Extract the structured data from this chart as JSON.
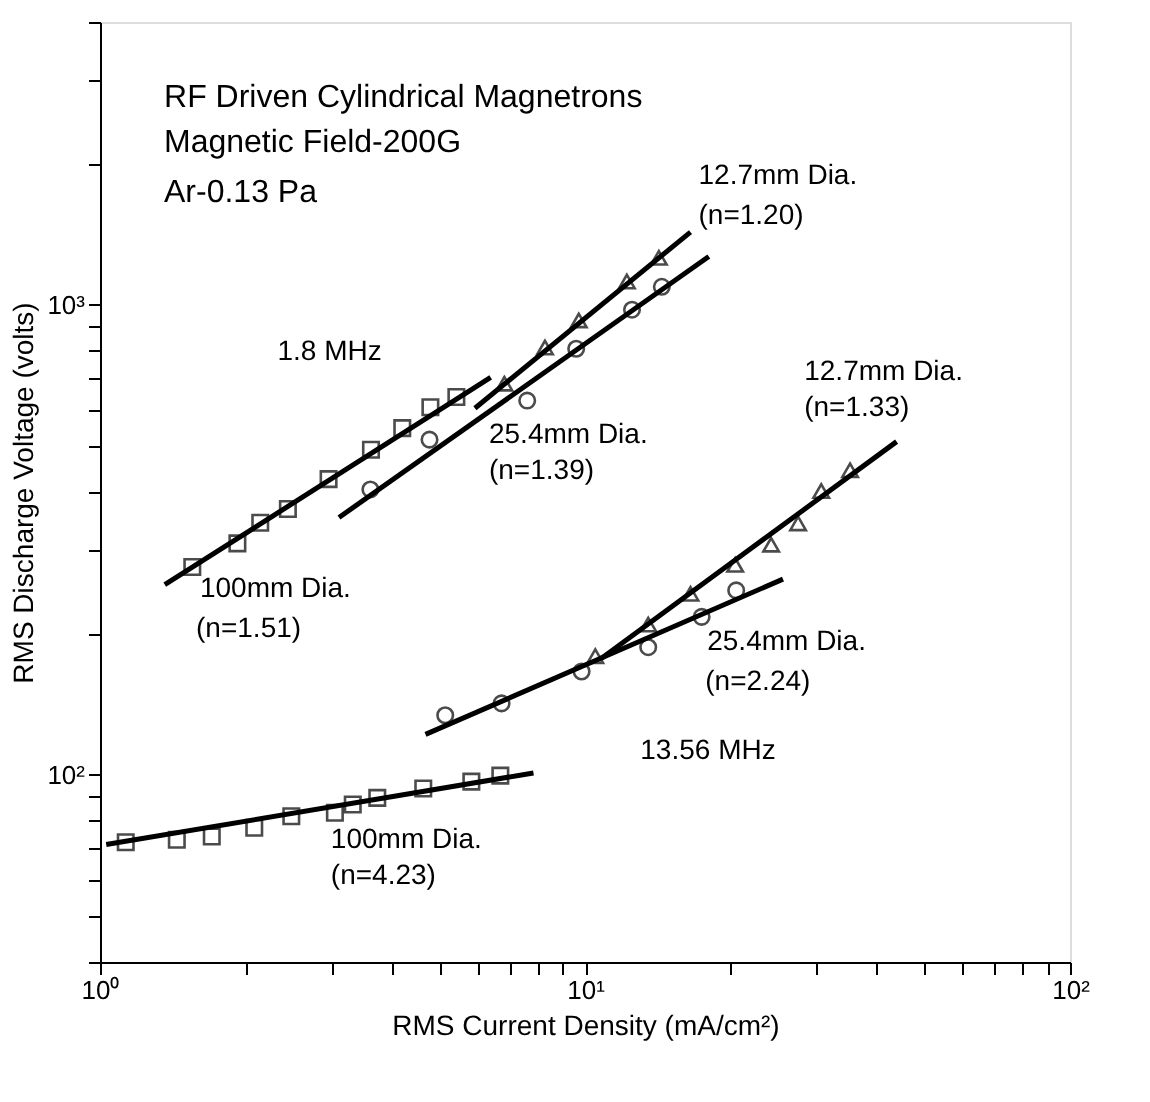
{
  "chart_data": {
    "type": "scatter",
    "xlabel": "RMS Current Density  (mA/cm²)",
    "ylabel": "RMS Discharge Voltage  (volts)",
    "log": "xy",
    "grid": false,
    "xlim": [
      1,
      100
    ],
    "ylim": [
      40,
      4000
    ],
    "xticks": [
      {
        "value": 1,
        "label": "10⁰"
      },
      {
        "value": 2,
        "label": null
      },
      {
        "value": 3,
        "label": null
      },
      {
        "value": 4,
        "label": null
      },
      {
        "value": 5,
        "label": null
      },
      {
        "value": 6,
        "label": null
      },
      {
        "value": 7,
        "label": null
      },
      {
        "value": 8,
        "label": null
      },
      {
        "value": 9,
        "label": null
      },
      {
        "value": 10,
        "label": "10¹"
      },
      {
        "value": 20,
        "label": null
      },
      {
        "value": 30,
        "label": null
      },
      {
        "value": 40,
        "label": null
      },
      {
        "value": 50,
        "label": null
      },
      {
        "value": 60,
        "label": null
      },
      {
        "value": 70,
        "label": null
      },
      {
        "value": 80,
        "label": null
      },
      {
        "value": 90,
        "label": null
      },
      {
        "value": 100,
        "label": "10²"
      }
    ],
    "yticks": [
      {
        "value": 40,
        "label": null
      },
      {
        "value": 50,
        "label": null
      },
      {
        "value": 60,
        "label": null
      },
      {
        "value": 70,
        "label": null
      },
      {
        "value": 80,
        "label": null
      },
      {
        "value": 90,
        "label": null
      },
      {
        "value": 100,
        "label": "10²"
      },
      {
        "value": 200,
        "label": null
      },
      {
        "value": 300,
        "label": null
      },
      {
        "value": 400,
        "label": null
      },
      {
        "value": 500,
        "label": null
      },
      {
        "value": 600,
        "label": null
      },
      {
        "value": 700,
        "label": null
      },
      {
        "value": 800,
        "label": null
      },
      {
        "value": 900,
        "label": null
      },
      {
        "value": 1000,
        "label": "10³"
      },
      {
        "value": 2000,
        "label": null
      },
      {
        "value": 3000,
        "label": null
      },
      {
        "value": 4000,
        "label": null
      }
    ],
    "series": [
      {
        "marker": "square",
        "color": "#000000",
        "x": [
          1.55,
          1.92,
          2.14,
          2.44,
          2.96,
          3.62,
          4.2,
          4.8,
          5.43
        ],
        "values": [
          277,
          311,
          344,
          368,
          426,
          492,
          547,
          606,
          637
        ]
      },
      {
        "marker": "circle",
        "color": "#000000",
        "x": [
          3.61,
          4.78,
          7.6,
          9.59,
          12.5,
          14.4
        ],
        "values": [
          405,
          517,
          626,
          807,
          977,
          1093
        ]
      },
      {
        "marker": "triangle",
        "color": "#000000",
        "x": [
          6.82,
          8.27,
          9.71,
          12.2,
          14.2
        ],
        "values": [
          680,
          812,
          927,
          1122,
          1260
        ]
      },
      {
        "marker": "circle",
        "color": "#000000",
        "x": [
          5.15,
          6.73,
          9.84,
          13.5,
          17.4,
          20.5
        ],
        "values": [
          134,
          142,
          166,
          187,
          217,
          247
        ]
      },
      {
        "marker": "triangle",
        "color": "#000000",
        "x": [
          10.5,
          13.5,
          16.5,
          20.4,
          24.2,
          27.5,
          30.7,
          35.2
        ],
        "values": [
          179,
          209,
          243,
          280,
          309,
          343,
          402,
          445
        ]
      },
      {
        "marker": "square",
        "color": "#000000",
        "x": [
          1.13,
          1.44,
          1.7,
          2.08,
          2.48,
          3.05,
          3.32,
          3.73,
          4.64,
          5.83,
          6.69
        ],
        "values": [
          71.9,
          72.8,
          74,
          77.2,
          81.7,
          83.1,
          86.5,
          89.4,
          93.6,
          96.8,
          99.7
        ]
      },
      {
        "type": "line",
        "color": "#000000",
        "x": [
          1.36,
          6.39
        ],
        "values": [
          254,
          701
        ]
      },
      {
        "type": "line",
        "color": "#000000",
        "x": [
          3.11,
          18
        ],
        "values": [
          353,
          1268
        ]
      },
      {
        "type": "line",
        "color": "#000000",
        "x": [
          5.93,
          16.5
        ],
        "values": [
          603,
          1429
        ]
      },
      {
        "type": "line",
        "color": "#000000",
        "x": [
          4.69,
          25.6
        ],
        "values": [
          122,
          261
        ]
      },
      {
        "type": "line",
        "color": "#000000",
        "x": [
          10.8,
          43.9
        ],
        "values": [
          177,
          512
        ]
      },
      {
        "type": "line",
        "color": "#000000",
        "x": [
          1.03,
          7.83
        ],
        "values": [
          71.1,
          101
        ]
      }
    ],
    "annotations": [
      "RF Driven Cylindrical Magnetrons",
      "Magnetic Field-200G",
      "Ar-0.13 Pa",
      "12.7mm Dia.",
      "(n=1.20)",
      "25.4mm Dia.",
      "(n=1.39)",
      "100mm Dia.",
      "(n=1.51)",
      "1.8 MHz",
      "12.7mm Dia.",
      "(n=1.33)",
      "25.4mm Dia.",
      "(n=2.24)",
      "13.56 MHz",
      "100mm Dia.",
      "(n=4.23)"
    ]
  }
}
